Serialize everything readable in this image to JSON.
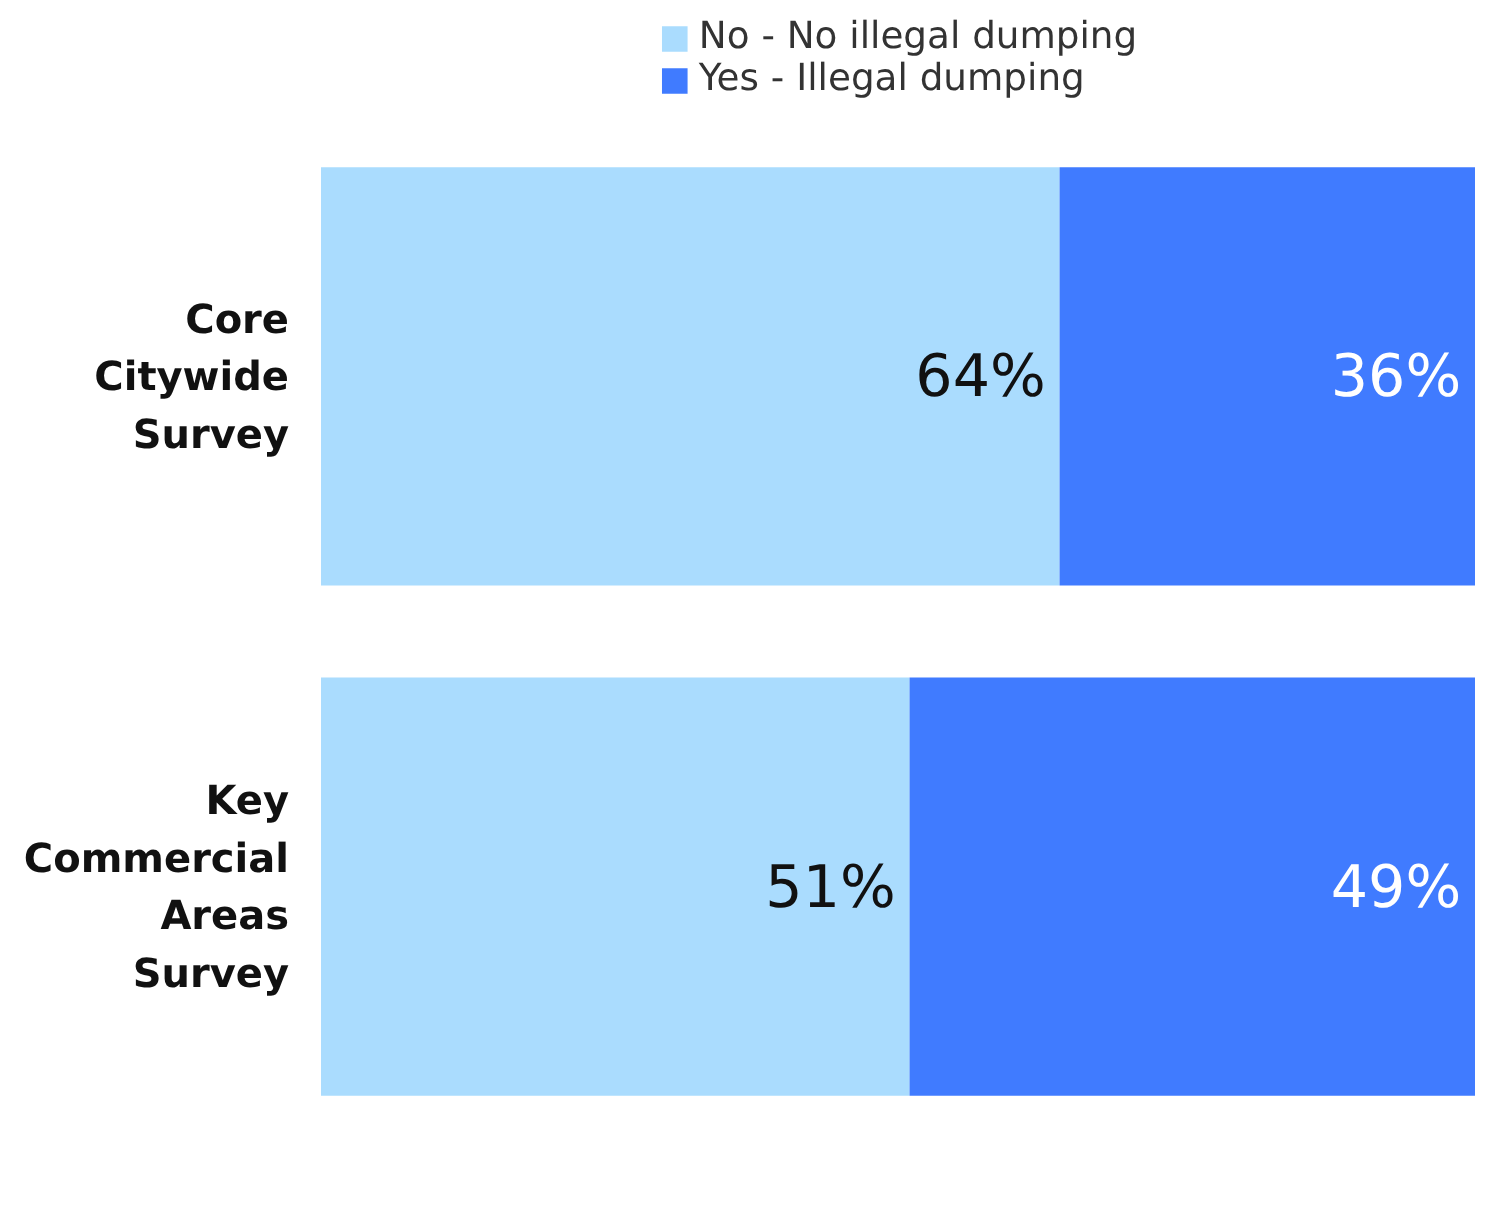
{
  "chart_data": {
    "type": "bar",
    "orientation": "horizontal",
    "stacked": true,
    "categories": [
      "Core Citywide Survey",
      "Key Commercial Areas Survey"
    ],
    "series": [
      {
        "name": "No - No illegal dumping",
        "color": "#aadcfe",
        "values": [
          64,
          51
        ],
        "value_labels": [
          "64%",
          "51%"
        ]
      },
      {
        "name": "Yes - Illegal dumping",
        "color": "#407bff",
        "values": [
          36,
          49
        ],
        "value_labels": [
          "36%",
          "49%"
        ]
      }
    ],
    "legend": "top",
    "tick_labels": "y"
  }
}
